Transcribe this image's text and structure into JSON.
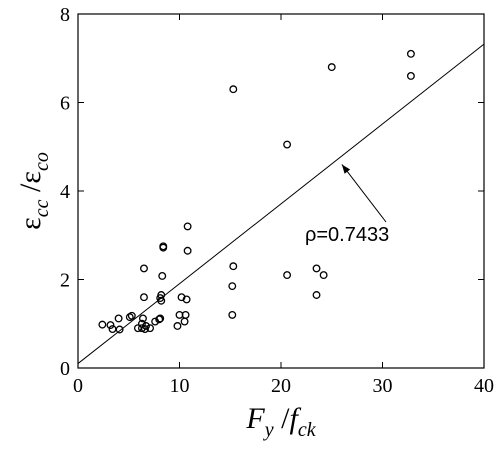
{
  "chart_data": {
    "type": "scatter",
    "xlabel": {
      "main": "F",
      "sub": "y",
      "sep": " /",
      "main2": "f",
      "sub2": "ck"
    },
    "ylabel": {
      "main": "ε",
      "sub": "cc",
      "sep": " /",
      "main2": "ε",
      "sub2": "co"
    },
    "xlim": [
      0,
      40
    ],
    "ylim": [
      0,
      8
    ],
    "xticks": [
      0,
      10,
      20,
      30,
      40
    ],
    "yticks": [
      0,
      2,
      4,
      6,
      8
    ],
    "grid": false,
    "series": [
      {
        "marker": "open-circle",
        "points": [
          [
            2.4,
            0.98
          ],
          [
            3.2,
            0.97
          ],
          [
            3.4,
            0.88
          ],
          [
            4.0,
            1.12
          ],
          [
            4.1,
            0.87
          ],
          [
            5.1,
            1.15
          ],
          [
            5.3,
            1.18
          ],
          [
            5.9,
            0.9
          ],
          [
            6.3,
            0.9
          ],
          [
            6.3,
            1.0
          ],
          [
            6.4,
            1.12
          ],
          [
            6.5,
            2.25
          ],
          [
            6.5,
            1.6
          ],
          [
            6.6,
            0.88
          ],
          [
            6.7,
            0.95
          ],
          [
            7.1,
            0.9
          ],
          [
            7.6,
            1.05
          ],
          [
            8.0,
            1.1
          ],
          [
            8.1,
            1.12
          ],
          [
            8.1,
            1.58
          ],
          [
            8.2,
            1.65
          ],
          [
            8.2,
            1.52
          ],
          [
            8.3,
            2.08
          ],
          [
            8.4,
            2.72
          ],
          [
            8.4,
            2.75
          ],
          [
            9.8,
            0.95
          ],
          [
            10.0,
            1.2
          ],
          [
            10.2,
            1.6
          ],
          [
            10.5,
            1.05
          ],
          [
            10.6,
            1.2
          ],
          [
            10.7,
            1.55
          ],
          [
            10.8,
            2.65
          ],
          [
            10.8,
            3.2
          ],
          [
            15.2,
            1.2
          ],
          [
            15.2,
            1.85
          ],
          [
            15.3,
            2.3
          ],
          [
            15.3,
            6.3
          ],
          [
            20.6,
            2.1
          ],
          [
            20.6,
            5.05
          ],
          [
            23.5,
            1.65
          ],
          [
            23.5,
            2.25
          ],
          [
            24.2,
            2.1
          ],
          [
            25.0,
            6.8
          ],
          [
            32.8,
            7.1
          ],
          [
            32.8,
            6.6
          ]
        ]
      }
    ],
    "fit_line": {
      "x": [
        0,
        40
      ],
      "y": [
        0.1,
        7.32
      ]
    },
    "annotation": {
      "text": "ρ=0.7433",
      "arrow_to": [
        26.0,
        4.6
      ]
    }
  }
}
